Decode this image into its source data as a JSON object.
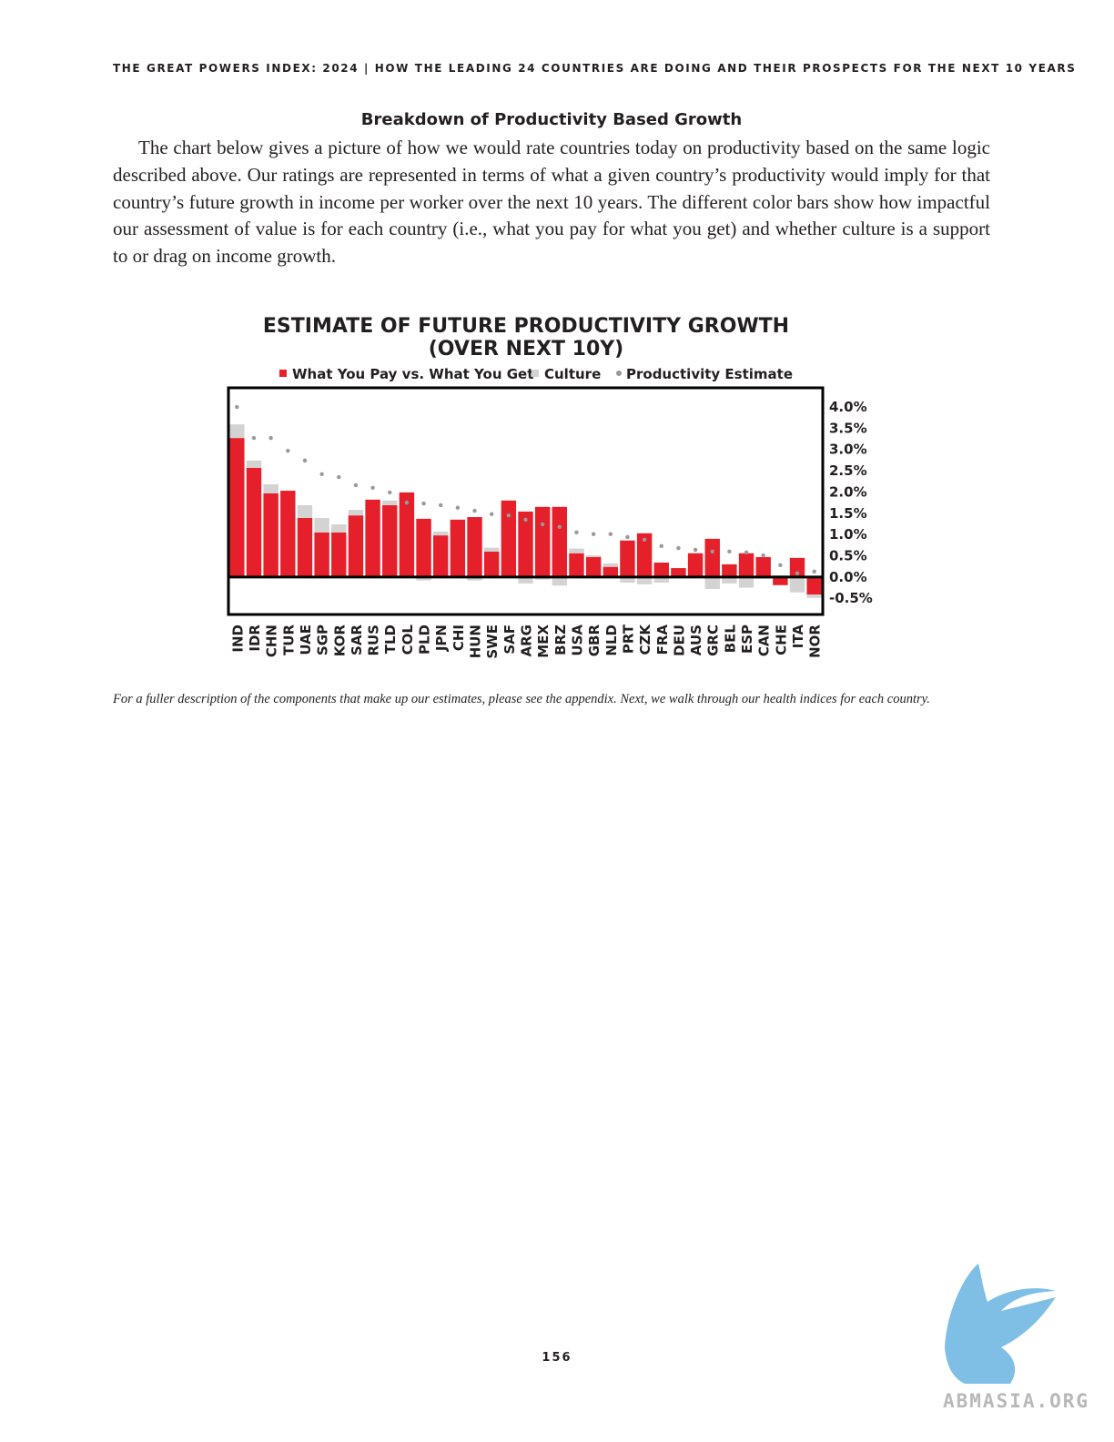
{
  "header": {
    "title": "THE GREAT POWERS INDEX: 2024 | HOW THE LEADING 24 COUNTRIES ARE DOING AND THEIR PROSPECTS FOR THE NEXT 10 YEARS"
  },
  "section": {
    "heading": "Breakdown of Productivity Based Growth",
    "paragraph": "The chart below gives a picture of how we would rate countries today on productivity based on the same logic described above. Our ratings are represented in terms of what a given country’s productivity would imply for that country’s future growth in income per worker over the next 10 years. The different color bars show how impactful our assessment of value is for each country (i.e., what you pay for what you get) and whether culture is a support to or drag on income growth."
  },
  "chart_data": {
    "type": "stacked_bar_dot",
    "title": [
      "ESTIMATE OF FUTURE PRODUCTIVITY GROWTH",
      "(OVER NEXT 10Y)"
    ],
    "categories": [
      "IND",
      "IDR",
      "CHN",
      "TUR",
      "UAE",
      "SGP",
      "KOR",
      "SAR",
      "RUS",
      "TLD",
      "COL",
      "PLD",
      "JPN",
      "CHI",
      "HUN",
      "SWE",
      "SAF",
      "ARG",
      "MEX",
      "BRZ",
      "USA",
      "GBR",
      "NLD",
      "PRT",
      "CZK",
      "FRA",
      "DEU",
      "AUS",
      "GRC",
      "BEL",
      "ESP",
      "CAN",
      "CHE",
      "ITA",
      "NOR"
    ],
    "series": [
      {
        "name": "What You Pay vs. What You Get",
        "color": "#e5202a",
        "kind": "bar",
        "values": [
          3.27,
          2.57,
          1.97,
          2.03,
          1.39,
          1.05,
          1.05,
          1.45,
          1.82,
          1.69,
          1.99,
          1.37,
          0.98,
          1.35,
          1.41,
          0.6,
          1.8,
          1.54,
          1.65,
          1.65,
          0.56,
          0.47,
          0.24,
          0.86,
          1.03,
          0.34,
          0.21,
          0.56,
          0.9,
          0.3,
          0.56,
          0.47,
          -0.19,
          0.45,
          -0.41
        ]
      },
      {
        "name": "Culture",
        "color": "#d3d3d3",
        "kind": "bar",
        "values": [
          0.32,
          0.17,
          0.21,
          0,
          0.3,
          0.34,
          0.19,
          0.13,
          0,
          0.11,
          0,
          -0.08,
          0.09,
          0,
          -0.08,
          0.09,
          0,
          -0.15,
          -0.06,
          -0.2,
          0.11,
          0.04,
          0.08,
          -0.13,
          -0.17,
          -0.13,
          0,
          0,
          -0.28,
          -0.15,
          -0.25,
          -0.04,
          0.04,
          -0.36,
          -0.08
        ]
      },
      {
        "name": "Productivity Estimate",
        "color": "#999999",
        "kind": "dot",
        "values": [
          4.0,
          3.27,
          3.27,
          2.97,
          2.74,
          2.42,
          2.35,
          2.16,
          2.1,
          1.99,
          1.75,
          1.73,
          1.69,
          1.63,
          1.56,
          1.48,
          1.45,
          1.35,
          1.24,
          1.18,
          1.05,
          1.01,
          1.01,
          0.94,
          0.88,
          0.73,
          0.68,
          0.64,
          0.6,
          0.6,
          0.58,
          0.51,
          0.28,
          0.09,
          0.13
        ]
      }
    ],
    "ylim": [
      -0.88,
      4.45
    ],
    "yticks": [
      {
        "value": 4.0,
        "label": "4.0%"
      },
      {
        "value": 3.5,
        "label": "3.5%"
      },
      {
        "value": 3.0,
        "label": "3.0%"
      },
      {
        "value": 2.5,
        "label": "2.5%"
      },
      {
        "value": 2.0,
        "label": "2.0%"
      },
      {
        "value": 1.5,
        "label": "1.5%"
      },
      {
        "value": 1.0,
        "label": "1.0%"
      },
      {
        "value": 0.5,
        "label": "0.5%"
      },
      {
        "value": 0.0,
        "label": "0.0%"
      },
      {
        "value": -0.5,
        "label": "-0.5%"
      }
    ],
    "grid": false
  },
  "footnote": "For a fuller description of the components that make up our estimates, please see the appendix. Next, we walk through our health indices for each country.",
  "page_number": "156",
  "watermark": "ABMASIA.ORG"
}
